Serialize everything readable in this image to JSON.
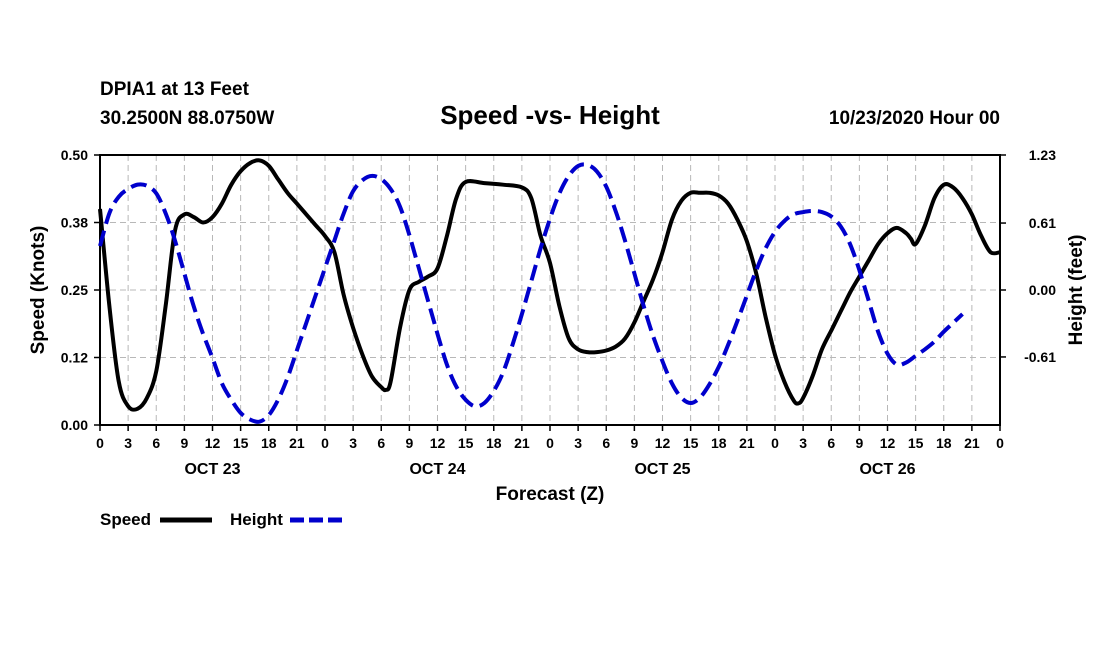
{
  "header": {
    "station": "DPIA1 at 13 Feet",
    "coords": "30.2500N 88.0750W",
    "title": "Speed -vs- Height",
    "issued": "10/23/2020 Hour 00"
  },
  "chart_data": {
    "type": "line",
    "title": "Speed -vs- Height",
    "xlabel": "Forecast (Z)",
    "ylabel": "Speed (Knots)",
    "y2label": "Height (feet)",
    "x_range_hours": [
      0,
      96
    ],
    "ylim": [
      0,
      0.5
    ],
    "y2lim": [
      -1.23,
      1.23
    ],
    "y_ticks": [
      "0.00",
      "0.12",
      "0.25",
      "0.38",
      "0.50"
    ],
    "y2_ticks": [
      "-0.61",
      "0.00",
      "0.61",
      "1.23"
    ],
    "x_tick_labels": [
      "0",
      "3",
      "6",
      "9",
      "12",
      "15",
      "18",
      "21",
      "0",
      "3",
      "6",
      "9",
      "12",
      "15",
      "18",
      "21",
      "0",
      "3",
      "6",
      "9",
      "12",
      "15",
      "18",
      "21",
      "0",
      "3",
      "6",
      "9",
      "12",
      "15",
      "18",
      "21",
      "0"
    ],
    "day_labels": [
      {
        "label": "OCT 23",
        "hour": 12
      },
      {
        "label": "OCT 24",
        "hour": 36
      },
      {
        "label": "OCT 25",
        "hour": 60
      },
      {
        "label": "OCT 26",
        "hour": 84
      }
    ],
    "grid": true,
    "series": [
      {
        "name": "Speed",
        "axis": "left",
        "color": "#000000",
        "style": "solid",
        "points": [
          [
            0,
            0.4
          ],
          [
            1,
            0.22
          ],
          [
            2,
            0.08
          ],
          [
            3,
            0.035
          ],
          [
            4,
            0.03
          ],
          [
            5,
            0.05
          ],
          [
            6,
            0.1
          ],
          [
            7,
            0.22
          ],
          [
            8,
            0.36
          ],
          [
            9,
            0.39
          ],
          [
            10,
            0.385
          ],
          [
            11,
            0.375
          ],
          [
            12,
            0.385
          ],
          [
            13,
            0.41
          ],
          [
            14,
            0.445
          ],
          [
            15,
            0.47
          ],
          [
            16,
            0.485
          ],
          [
            17,
            0.49
          ],
          [
            18,
            0.48
          ],
          [
            19,
            0.455
          ],
          [
            20,
            0.43
          ],
          [
            21,
            0.41
          ],
          [
            22,
            0.39
          ],
          [
            23,
            0.37
          ],
          [
            24,
            0.35
          ],
          [
            25,
            0.32
          ],
          [
            26,
            0.24
          ],
          [
            27,
            0.18
          ],
          [
            28,
            0.13
          ],
          [
            29,
            0.09
          ],
          [
            30,
            0.07
          ],
          [
            30.5,
            0.065
          ],
          [
            31,
            0.08
          ],
          [
            32,
            0.18
          ],
          [
            33,
            0.25
          ],
          [
            34,
            0.265
          ],
          [
            35,
            0.275
          ],
          [
            36,
            0.29
          ],
          [
            37,
            0.35
          ],
          [
            38,
            0.42
          ],
          [
            39,
            0.45
          ],
          [
            41,
            0.448
          ],
          [
            43,
            0.445
          ],
          [
            45,
            0.44
          ],
          [
            46,
            0.42
          ],
          [
            47,
            0.35
          ],
          [
            48,
            0.3
          ],
          [
            49,
            0.22
          ],
          [
            50,
            0.16
          ],
          [
            51,
            0.14
          ],
          [
            52,
            0.135
          ],
          [
            53,
            0.135
          ],
          [
            54,
            0.138
          ],
          [
            55,
            0.145
          ],
          [
            56,
            0.16
          ],
          [
            57,
            0.19
          ],
          [
            58,
            0.23
          ],
          [
            59,
            0.27
          ],
          [
            60,
            0.32
          ],
          [
            61,
            0.38
          ],
          [
            62,
            0.415
          ],
          [
            63,
            0.43
          ],
          [
            64,
            0.43
          ],
          [
            65,
            0.43
          ],
          [
            66,
            0.425
          ],
          [
            67,
            0.41
          ],
          [
            68,
            0.38
          ],
          [
            69,
            0.34
          ],
          [
            70,
            0.28
          ],
          [
            71,
            0.2
          ],
          [
            72,
            0.13
          ],
          [
            73,
            0.08
          ],
          [
            74,
            0.045
          ],
          [
            74.5,
            0.04
          ],
          [
            75,
            0.05
          ],
          [
            76,
            0.09
          ],
          [
            77,
            0.14
          ],
          [
            78,
            0.175
          ],
          [
            79,
            0.21
          ],
          [
            80,
            0.245
          ],
          [
            81,
            0.275
          ],
          [
            82,
            0.305
          ],
          [
            83,
            0.335
          ],
          [
            84,
            0.355
          ],
          [
            85,
            0.365
          ],
          [
            86,
            0.355
          ],
          [
            86.5,
            0.345
          ],
          [
            87,
            0.335
          ],
          [
            88,
            0.37
          ],
          [
            89,
            0.42
          ],
          [
            90,
            0.445
          ],
          [
            91,
            0.44
          ],
          [
            92,
            0.42
          ],
          [
            93,
            0.39
          ],
          [
            94,
            0.35
          ],
          [
            95,
            0.32
          ],
          [
            96,
            0.32
          ]
        ]
      },
      {
        "name": "Height",
        "axis": "right",
        "color": "#0000cc",
        "style": "dashed",
        "points": [
          [
            0,
            0.4
          ],
          [
            1,
            0.7
          ],
          [
            2,
            0.85
          ],
          [
            3,
            0.92
          ],
          [
            4,
            0.96
          ],
          [
            5,
            0.95
          ],
          [
            6,
            0.88
          ],
          [
            7,
            0.7
          ],
          [
            8,
            0.45
          ],
          [
            9,
            0.15
          ],
          [
            10,
            -0.15
          ],
          [
            11,
            -0.4
          ],
          [
            12,
            -0.62
          ],
          [
            13,
            -0.85
          ],
          [
            14,
            -1.0
          ],
          [
            15,
            -1.12
          ],
          [
            16,
            -1.18
          ],
          [
            17,
            -1.2
          ],
          [
            18,
            -1.14
          ],
          [
            19,
            -1.0
          ],
          [
            20,
            -0.8
          ],
          [
            21,
            -0.55
          ],
          [
            22,
            -0.3
          ],
          [
            23,
            -0.05
          ],
          [
            24,
            0.2
          ],
          [
            25,
            0.45
          ],
          [
            26,
            0.7
          ],
          [
            27,
            0.9
          ],
          [
            28,
            1.0
          ],
          [
            29,
            1.04
          ],
          [
            30,
            1.01
          ],
          [
            31,
            0.92
          ],
          [
            32,
            0.76
          ],
          [
            33,
            0.5
          ],
          [
            34,
            0.2
          ],
          [
            35,
            -0.1
          ],
          [
            36,
            -0.4
          ],
          [
            37,
            -0.68
          ],
          [
            38,
            -0.88
          ],
          [
            39,
            -1.0
          ],
          [
            40,
            -1.06
          ],
          [
            41,
            -1.03
          ],
          [
            42,
            -0.92
          ],
          [
            43,
            -0.75
          ],
          [
            44,
            -0.5
          ],
          [
            45,
            -0.22
          ],
          [
            46,
            0.08
          ],
          [
            47,
            0.38
          ],
          [
            48,
            0.65
          ],
          [
            49,
            0.88
          ],
          [
            50,
            1.04
          ],
          [
            51,
            1.13
          ],
          [
            52,
            1.14
          ],
          [
            53,
            1.08
          ],
          [
            54,
            0.94
          ],
          [
            55,
            0.72
          ],
          [
            56,
            0.45
          ],
          [
            57,
            0.15
          ],
          [
            58,
            -0.15
          ],
          [
            59,
            -0.42
          ],
          [
            60,
            -0.65
          ],
          [
            61,
            -0.85
          ],
          [
            62,
            -0.98
          ],
          [
            63,
            -1.03
          ],
          [
            64,
            -0.98
          ],
          [
            65,
            -0.86
          ],
          [
            66,
            -0.7
          ],
          [
            67,
            -0.5
          ],
          [
            68,
            -0.28
          ],
          [
            69,
            -0.05
          ],
          [
            70,
            0.18
          ],
          [
            71,
            0.38
          ],
          [
            72,
            0.53
          ],
          [
            73,
            0.63
          ],
          [
            74,
            0.69
          ],
          [
            75,
            0.71
          ],
          [
            76,
            0.72
          ],
          [
            77,
            0.71
          ],
          [
            78,
            0.67
          ],
          [
            79,
            0.58
          ],
          [
            80,
            0.42
          ],
          [
            81,
            0.18
          ],
          [
            82,
            -0.1
          ],
          [
            83,
            -0.38
          ],
          [
            84,
            -0.58
          ],
          [
            85,
            -0.68
          ],
          [
            86,
            -0.66
          ],
          [
            87,
            -0.6
          ],
          [
            88,
            -0.54
          ],
          [
            89,
            -0.47
          ],
          [
            90,
            -0.38
          ],
          [
            91,
            -0.3
          ],
          [
            92,
            -0.22
          ]
        ]
      }
    ]
  },
  "legend": {
    "speed_label": "Speed",
    "height_label": "Height"
  }
}
